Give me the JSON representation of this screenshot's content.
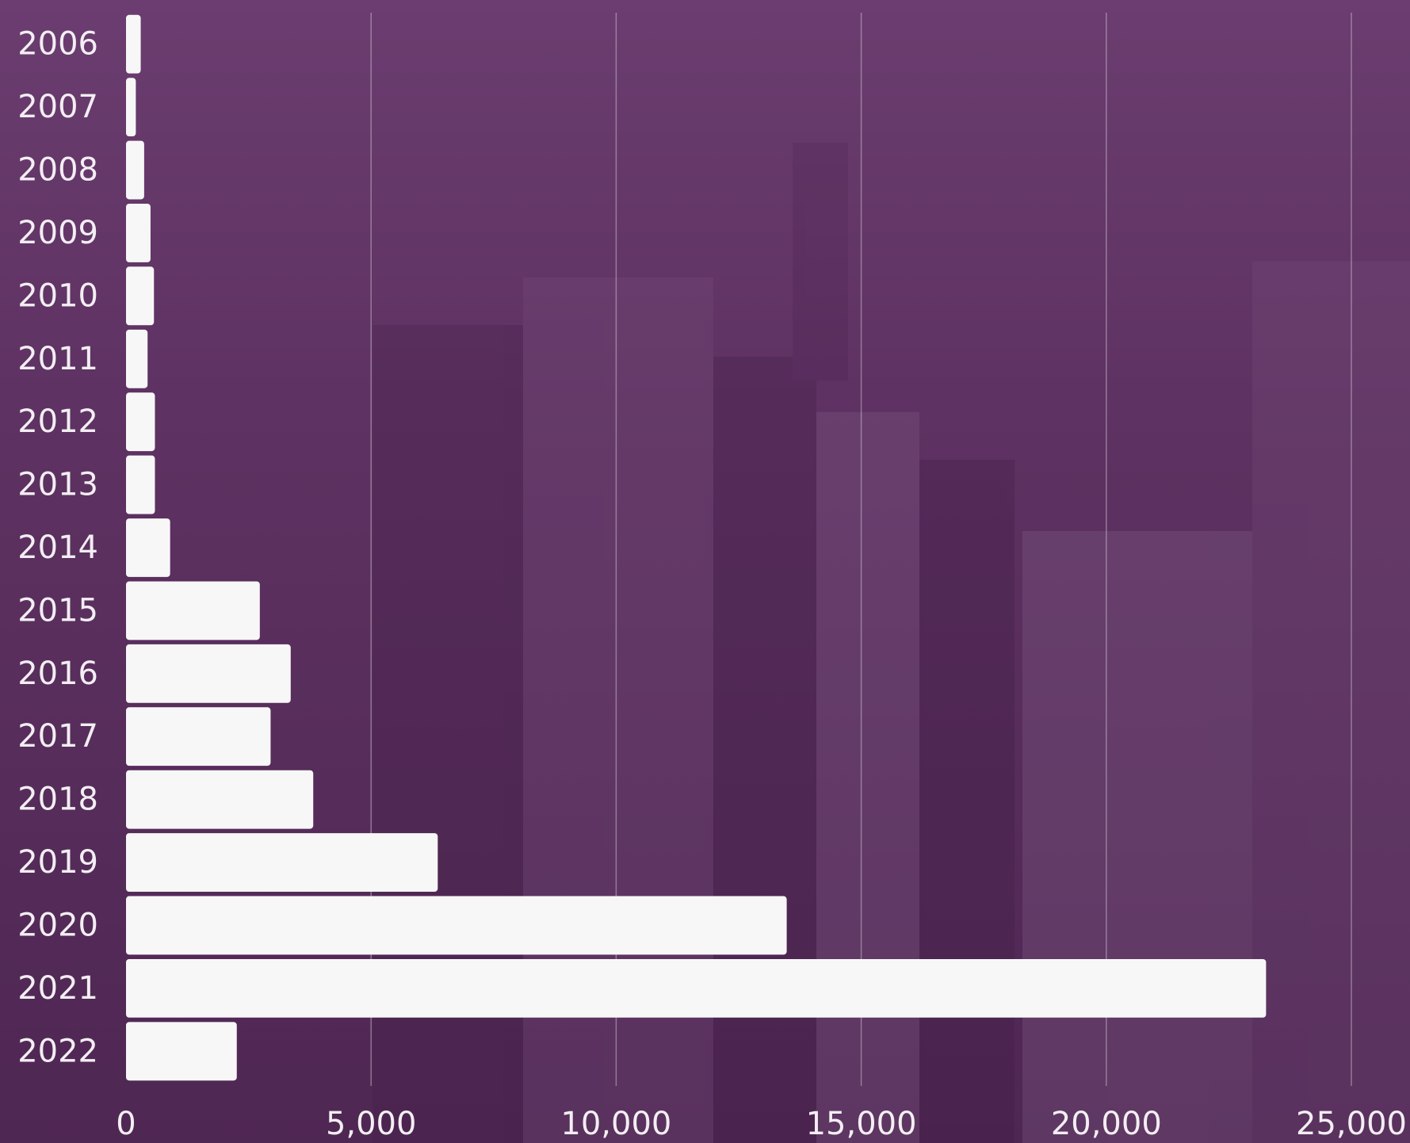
{
  "chart_data": {
    "type": "bar",
    "orientation": "horizontal",
    "categories": [
      "2006",
      "2007",
      "2008",
      "2009",
      "2010",
      "2011",
      "2012",
      "2013",
      "2014",
      "2015",
      "2016",
      "2017",
      "2018",
      "2019",
      "2020",
      "2021",
      "2022"
    ],
    "values": [
      300,
      200,
      370,
      500,
      570,
      440,
      590,
      590,
      900,
      2730,
      3360,
      2950,
      3820,
      6360,
      13480,
      23260,
      2260
    ],
    "color": "#f8f7f8",
    "xlim": [
      0,
      25000
    ],
    "xticks": [
      0,
      {
        "value": 5000,
        "label": "5,000"
      },
      {
        "value": 10000,
        "label": "10,000"
      },
      {
        "value": 15000,
        "label": "15,000"
      },
      {
        "value": 20000,
        "label": "20,000"
      },
      {
        "value": 25000,
        "label": "25,000"
      }
    ],
    "grid": true
  }
}
